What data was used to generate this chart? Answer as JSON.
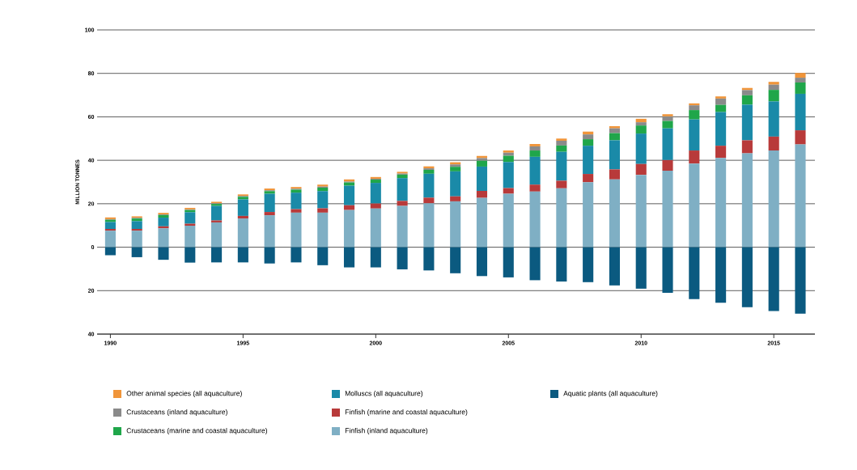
{
  "chart_data": {
    "type": "bar",
    "stacked": true,
    "ylabel": "MILLION TONNES",
    "x": [
      1990,
      1991,
      1992,
      1993,
      1994,
      1995,
      1996,
      1997,
      1998,
      1999,
      2000,
      2001,
      2002,
      2003,
      2004,
      2005,
      2006,
      2007,
      2008,
      2009,
      2010,
      2011,
      2012,
      2013,
      2014,
      2015,
      2016
    ],
    "series": [
      {
        "name": "Finfish (inland aquaculture)",
        "color": "#7fafc4",
        "values": [
          7.6,
          7.6,
          8.7,
          9.9,
          11.4,
          13.2,
          14.7,
          15.9,
          15.9,
          17.1,
          17.8,
          19.0,
          20.2,
          21.1,
          22.7,
          24.6,
          25.6,
          27.1,
          29.9,
          31.2,
          33.3,
          35.2,
          38.5,
          41.1,
          43.2,
          44.5,
          47.3
        ]
      },
      {
        "name": "Finfish (marine and coastal aquaculture)",
        "color": "#b83a3a",
        "values": [
          0.8,
          0.8,
          0.9,
          0.9,
          0.9,
          1.2,
          1.5,
          1.6,
          2.0,
          2.2,
          2.3,
          2.3,
          2.6,
          2.3,
          3.2,
          2.6,
          3.2,
          3.5,
          3.8,
          4.6,
          5.0,
          4.9,
          6.0,
          5.6,
          6.0,
          6.4,
          6.5
        ]
      },
      {
        "name": "Molluscs (all aquaculture)",
        "color": "#1a8aa8",
        "values": [
          3.2,
          3.6,
          4.0,
          5.3,
          6.7,
          7.6,
          8.4,
          7.6,
          7.9,
          9.0,
          9.5,
          10.5,
          11.0,
          11.5,
          11.2,
          12.0,
          12.8,
          13.3,
          13.0,
          13.4,
          14.0,
          14.6,
          14.3,
          15.5,
          16.4,
          16.2,
          16.8
        ]
      },
      {
        "name": "Crustaceans (marine and coastal aquaculture)",
        "color": "#1fa64a",
        "values": [
          1.0,
          1.2,
          1.2,
          1.0,
          0.9,
          1.2,
          1.2,
          1.4,
          1.6,
          1.5,
          1.5,
          1.6,
          1.8,
          2.1,
          2.7,
          2.9,
          2.9,
          2.9,
          3.0,
          3.3,
          3.7,
          3.4,
          4.3,
          3.3,
          4.3,
          5.3,
          5.2
        ]
      },
      {
        "name": "Crustaceans (inland aquaculture)",
        "color": "#8a8a8a",
        "values": [
          0.3,
          0.3,
          0.3,
          0.3,
          0.3,
          0.4,
          0.4,
          0.4,
          0.5,
          0.4,
          0.4,
          0.5,
          0.7,
          1.1,
          1.2,
          1.4,
          1.9,
          2.2,
          2.2,
          2.2,
          1.5,
          2.1,
          2.2,
          2.9,
          2.4,
          2.4,
          2.2
        ]
      },
      {
        "name": "Other animal species (all aquaculture)",
        "color": "#f0953a",
        "values": [
          0.8,
          0.7,
          0.7,
          0.7,
          0.7,
          0.7,
          0.8,
          0.8,
          0.9,
          1.0,
          0.8,
          0.8,
          0.9,
          1.0,
          1.0,
          1.0,
          1.1,
          1.0,
          1.3,
          1.0,
          1.6,
          1.0,
          0.9,
          1.0,
          1.0,
          1.3,
          2.2
        ]
      },
      {
        "name": "Aquatic plants (all aquaculture)",
        "color": "#0b5a80",
        "values": [
          -3.7,
          -4.6,
          -5.8,
          -7.1,
          -7.0,
          -7.0,
          -7.5,
          -7.0,
          -8.3,
          -9.3,
          -9.3,
          -10.2,
          -10.7,
          -12.0,
          -13.3,
          -13.9,
          -15.2,
          -15.8,
          -16.1,
          -17.6,
          -19.1,
          -21.0,
          -23.9,
          -25.6,
          -27.6,
          -29.4,
          -30.6
        ]
      }
    ],
    "xlim": [
      1989.5,
      2016.55
    ],
    "xticks": [
      1990,
      1995,
      2000,
      2005,
      2010,
      2015
    ],
    "ylim": [
      -40,
      100
    ],
    "yticks": [
      {
        "value": -40,
        "label": "40"
      },
      {
        "value": -20,
        "label": "20"
      },
      0,
      20,
      40,
      60,
      80,
      100
    ],
    "grid": "y",
    "legend": "bottom"
  }
}
